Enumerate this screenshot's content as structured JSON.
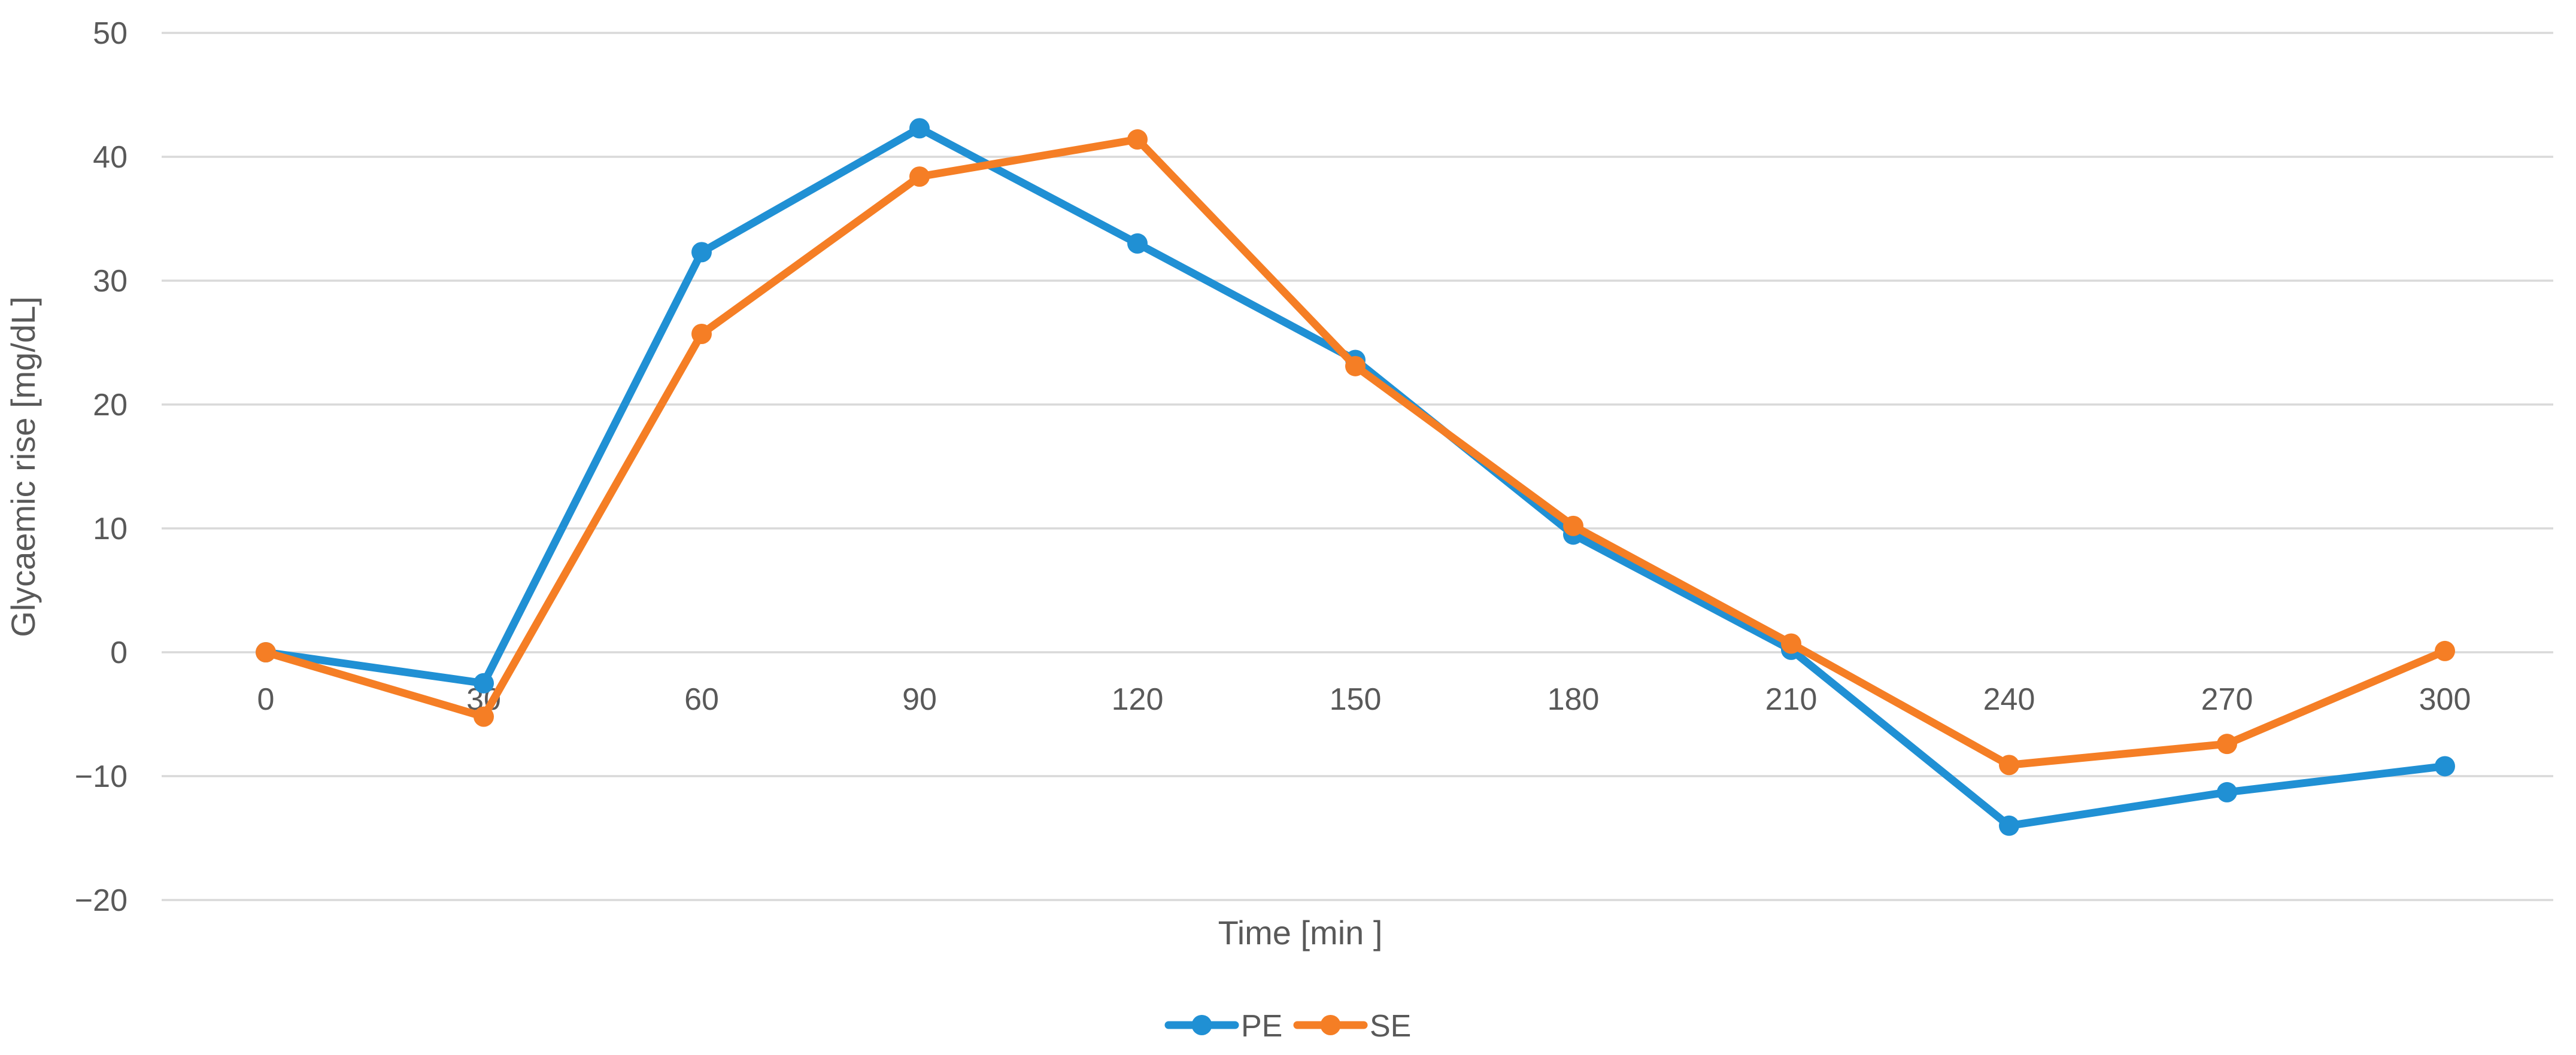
{
  "chart_data": {
    "type": "line",
    "title": "",
    "xlabel": "Time [min ]",
    "ylabel": "Glycaemic rise [mg/dL]",
    "x": [
      0,
      30,
      60,
      90,
      120,
      150,
      180,
      210,
      240,
      270,
      300
    ],
    "x_tick_labels": [
      "0",
      "30",
      "60",
      "90",
      "120",
      "150",
      "180",
      "210",
      "240",
      "270",
      "300"
    ],
    "y_ticks": [
      50,
      40,
      30,
      20,
      10,
      0,
      -10,
      -20
    ],
    "y_tick_labels": [
      "50",
      "40",
      "30",
      "20",
      "10",
      "0",
      "−10",
      "−20"
    ],
    "ylim": [
      -20,
      50
    ],
    "xlim": [
      0,
      300
    ],
    "grid": "horizontal",
    "marker": "circle",
    "legend_position": "bottom-center",
    "series": [
      {
        "name": "PE",
        "color": "#2090D4",
        "values": [
          0,
          -2.5,
          32.3,
          42.3,
          33.0,
          23.6,
          9.5,
          0.2,
          -14.0,
          -11.3,
          -9.2
        ]
      },
      {
        "name": "SE",
        "color": "#F57E25",
        "values": [
          0,
          -5.2,
          25.7,
          38.4,
          41.4,
          23.1,
          10.2,
          0.7,
          -9.1,
          -7.4,
          0.1
        ]
      }
    ]
  },
  "style": {
    "grid_color": "#D9D9D9",
    "text_color": "#595959",
    "background_color": "#FFFFFF"
  }
}
